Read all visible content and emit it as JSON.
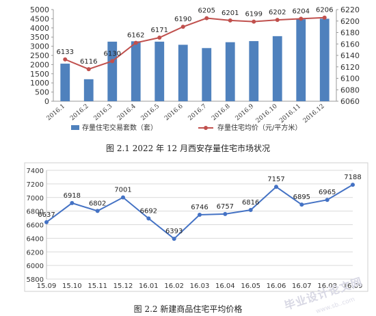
{
  "chart_data": [
    {
      "type": "bar",
      "categories": [
        "2016.1",
        "2016.2",
        "2016.3",
        "2016.4",
        "2016.5",
        "2016.6",
        "2016.7",
        "2016.8",
        "2016.9",
        "2016.10",
        "2016.11",
        "2016.12"
      ],
      "series": [
        {
          "name": "存量住宅交易套数（套）",
          "type": "bar",
          "axis": "left",
          "values": [
            2050,
            1200,
            3250,
            3270,
            3250,
            3080,
            2900,
            3220,
            3280,
            3550,
            4470,
            4500
          ]
        },
        {
          "name": "存量住宅均价（元/平方米）",
          "type": "line",
          "axis": "right",
          "values": [
            6133,
            6116,
            6130,
            6162,
            6171,
            6190,
            6205,
            6201,
            6199,
            6202,
            6204,
            6206
          ]
        }
      ],
      "yleft": {
        "ylim": [
          0,
          5000
        ],
        "ticks": [
          0,
          500,
          1000,
          1500,
          2000,
          2500,
          3000,
          3500,
          4000,
          4500,
          5000
        ]
      },
      "yright": {
        "ylim": [
          6060,
          6220
        ],
        "ticks": [
          6060,
          6080,
          6100,
          6120,
          6140,
          6160,
          6180,
          6200,
          6220
        ]
      },
      "grid": false,
      "legend": "bottom",
      "colors": {
        "bar": "#4f81bd",
        "line": "#c0504d"
      }
    },
    {
      "type": "line",
      "categories": [
        "15.09",
        "15.10",
        "15.11",
        "15.12",
        "16.01",
        "16.02",
        "16.03",
        "16.04",
        "16.05",
        "16.06",
        "16.07",
        "16.08",
        "16.09"
      ],
      "series": [
        {
          "values": [
            6637,
            6918,
            6802,
            7001,
            6692,
            6393,
            6746,
            6757,
            6816,
            7157,
            6895,
            6965,
            7188
          ]
        }
      ],
      "ylim": [
        5800,
        7400
      ],
      "ticks": [
        5800,
        6000,
        6200,
        6400,
        6600,
        6800,
        7000,
        7200,
        7400
      ],
      "grid": true,
      "colors": {
        "line": "#4472c4"
      }
    }
  ],
  "captions": {
    "fig1": "图 2.1   2022 年 12 月西安存量住宅市场状况",
    "fig2": "图 2.2   新建商品住宅平均价格"
  },
  "watermark": {
    "text": "毕业设计论文网",
    "url": "www.sb..com"
  }
}
